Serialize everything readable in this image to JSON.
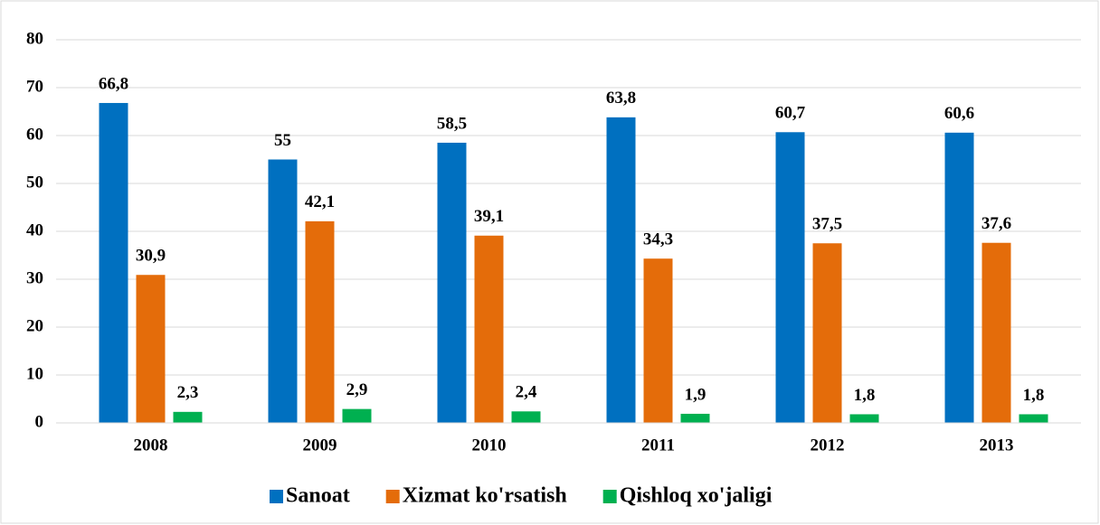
{
  "chart_data": {
    "type": "bar",
    "categories": [
      "2008",
      "2009",
      "2010",
      "2011",
      "2012",
      "2013"
    ],
    "series": [
      {
        "name": "Sanoat",
        "color": "#0070c0",
        "values": [
          66.8,
          55,
          58.5,
          63.8,
          60.7,
          60.6
        ],
        "value_labels": [
          "66,8",
          "55",
          "58,5",
          "63,8",
          "60,7",
          "60,6"
        ]
      },
      {
        "name": "Xizmat ko'rsatish",
        "color": "#e46c0a",
        "values": [
          30.9,
          42.1,
          39.1,
          34.3,
          37.5,
          37.6
        ],
        "value_labels": [
          "30,9",
          "42,1",
          "39,1",
          "34,3",
          "37,5",
          "37,6"
        ]
      },
      {
        "name": "Qishloq xo'jaligi",
        "color": "#00b050",
        "values": [
          2.3,
          2.9,
          2.4,
          1.9,
          1.8,
          1.8
        ],
        "value_labels": [
          "2,3",
          "2,9",
          "2,4",
          "1,9",
          "1,8",
          "1,8"
        ]
      }
    ],
    "ylim": [
      0,
      80
    ],
    "yticks": [
      0,
      10,
      20,
      30,
      40,
      50,
      60,
      70,
      80
    ],
    "grid": true,
    "legend": "bottom"
  }
}
